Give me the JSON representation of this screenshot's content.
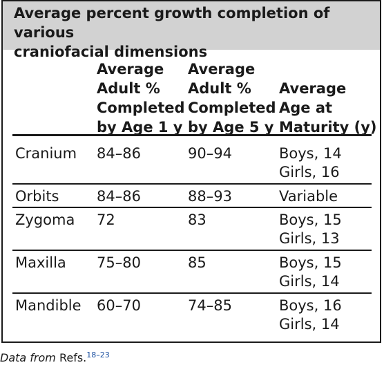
{
  "table": {
    "title_line1": "Average percent growth completion of various",
    "title_line2": "craniofacial dimensions",
    "headers": {
      "col2": [
        "Average",
        "Adult %",
        "Completed",
        "by Age 1 y"
      ],
      "col3": [
        "Average",
        "Adult %",
        "Completed",
        "by Age 5 y"
      ],
      "col4": [
        "Average",
        "Age at",
        "Maturity (y)"
      ]
    },
    "rows": [
      {
        "name": "Cranium",
        "age1": "84–86",
        "age5": "90–94",
        "maturity": [
          "Boys, 14",
          "Girls, 16"
        ]
      },
      {
        "name": "Orbits",
        "age1": "84–86",
        "age5": "88–93",
        "maturity": [
          "Variable"
        ]
      },
      {
        "name": "Zygoma",
        "age1": "72",
        "age5": "83",
        "maturity": [
          "Boys, 15",
          "Girls, 13"
        ]
      },
      {
        "name": "Maxilla",
        "age1": "75–80",
        "age5": "85",
        "maturity": [
          "Boys, 15",
          "Girls, 14"
        ]
      },
      {
        "name": "Mandible",
        "age1": "60–70",
        "age5": "74–85",
        "maturity": [
          "Boys, 16",
          "Girls, 14"
        ]
      }
    ]
  },
  "footer": {
    "prefix": "Data from",
    "refs_label": "Refs.",
    "refs_sup": "18–23"
  }
}
